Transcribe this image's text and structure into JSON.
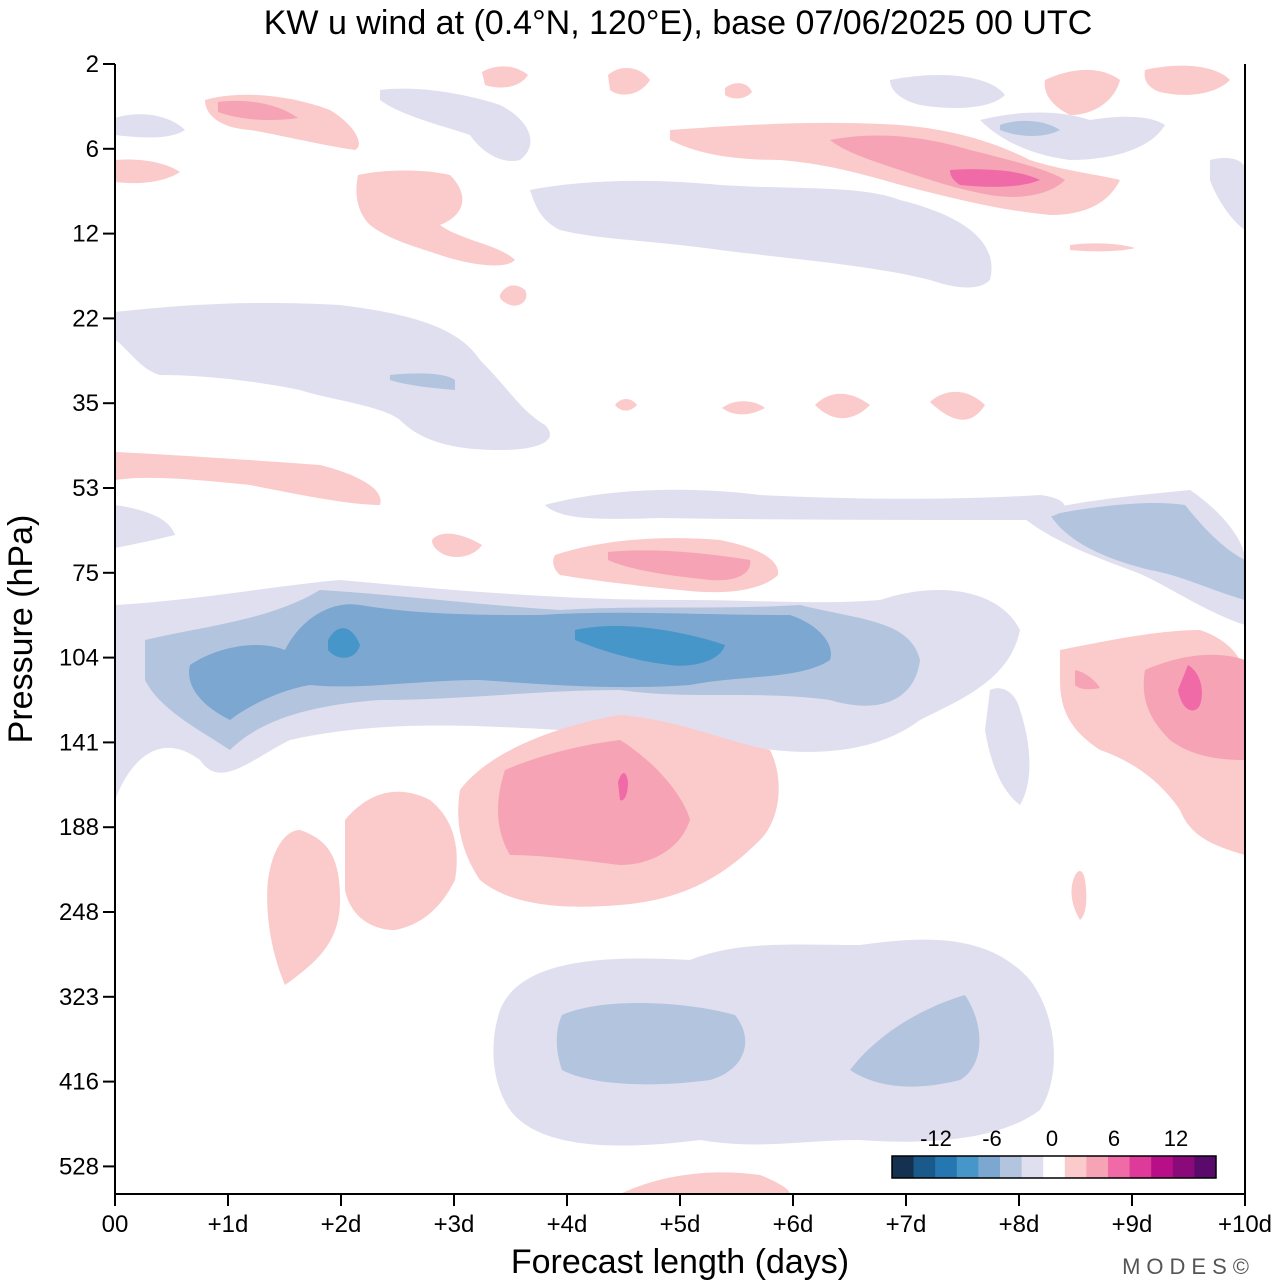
{
  "chart_data": {
    "type": "heatmap",
    "title": "KW u wind at (0.4°N, 120°E),  base 07/06/2025  00 UTC",
    "xlabel": "Forecast length (days)",
    "ylabel": "Pressure (hPa)",
    "x_ticks": [
      "00",
      "+1d",
      "+2d",
      "+3d",
      "+4d",
      "+5d",
      "+6d",
      "+7d",
      "+8d",
      "+9d",
      "+10d"
    ],
    "x_range_days": [
      0,
      10
    ],
    "y_ticks": [
      "2",
      "6",
      "12",
      "22",
      "35",
      "53",
      "75",
      "104",
      "141",
      "188",
      "248",
      "323",
      "416",
      "528"
    ],
    "y_scale": "log (top to bottom: 2 to 528 hPa)",
    "legend": {
      "position": "bottom-right",
      "labels": [
        "-12",
        "-6",
        "0",
        "6",
        "12"
      ],
      "colors": [
        "#14324f",
        "#1a5a8a",
        "#2577b2",
        "#4796c9",
        "#7ba7d0",
        "#b3c4df",
        "#dfdfef",
        "#ffffff",
        "#fbcaca",
        "#f5a3b5",
        "#f06aa8",
        "#dd3a9a",
        "#b80f88",
        "#8a0a7a",
        "#5a0a6a"
      ]
    },
    "regions": [
      {
        "sign": "negative",
        "level": "-6 to -8",
        "x_days": [
          0.4,
          8.0
        ],
        "pressure_hPa": [
          90,
          125
        ],
        "note": "main easterly band, core near +4.5d to +5d"
      },
      {
        "sign": "negative",
        "level": "-2 to -4",
        "x_days": [
          4.0,
          8.3
        ],
        "pressure_hPa": [
          330,
          450
        ],
        "note": "lower troposphere easterly"
      },
      {
        "sign": "negative",
        "level": "-2 to -4",
        "x_days": [
          8.0,
          10.0
        ],
        "pressure_hPa": [
          55,
          85
        ]
      },
      {
        "sign": "positive",
        "level": "4 to 6",
        "x_days": [
          3.5,
          5.6
        ],
        "pressure_hPa": [
          130,
          220
        ],
        "note": "westerly maximum near +4.5d"
      },
      {
        "sign": "positive",
        "level": "4 to 6",
        "x_days": [
          8.4,
          10.0
        ],
        "pressure_hPa": [
          100,
          180
        ]
      },
      {
        "sign": "positive",
        "level": "2 to 4",
        "x_days": [
          4.2,
          5.7
        ],
        "pressure_hPa": [
          65,
          82
        ]
      },
      {
        "sign": "positive",
        "level": "4 to 6",
        "x_days": [
          6.8,
          8.5
        ],
        "pressure_hPa": [
          5,
          10
        ]
      }
    ]
  },
  "credit": "MODES©"
}
